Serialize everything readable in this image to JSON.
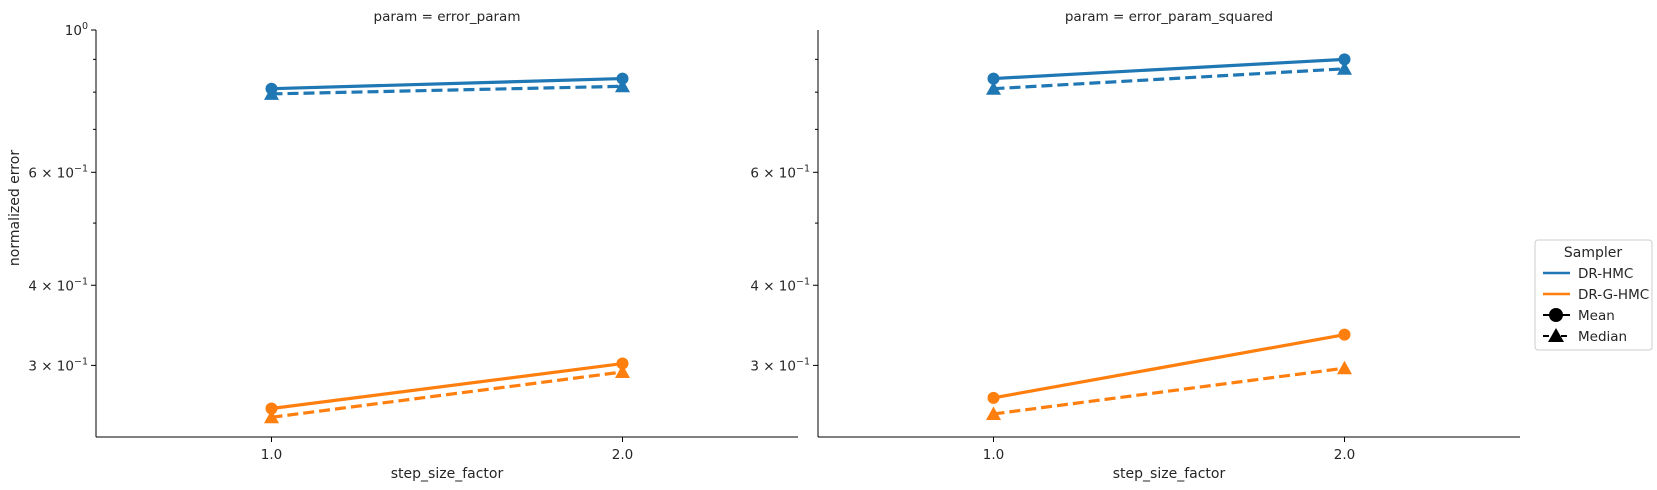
{
  "figure": {
    "ylabel": "normalized error",
    "legend": {
      "title": "Sampler",
      "placement": "right",
      "entries": [
        {
          "label": "DR-HMC",
          "kind": "series",
          "color": "#1f77b4"
        },
        {
          "label": "DR-G-HMC",
          "kind": "series",
          "color": "#ff7f0e"
        },
        {
          "label": "Mean",
          "kind": "style",
          "marker": "circle",
          "dash": "solid"
        },
        {
          "label": "Median",
          "kind": "style",
          "marker": "triangle",
          "dash": "dashed"
        }
      ]
    }
  },
  "chart_data": [
    {
      "type": "line",
      "title": "param = error_param",
      "xlabel": "step_size_factor",
      "ylabel": "normalized error",
      "yscale": "log",
      "categories": [
        "1.0",
        "2.0"
      ],
      "ylim": [
        0.232,
        1.0
      ],
      "yticks": [
        {
          "value": 1.0,
          "label": "10",
          "exp": "0"
        },
        {
          "value": 0.6,
          "label": "6 × 10",
          "exp": "−1"
        },
        {
          "value": 0.4,
          "label": "4 × 10",
          "exp": "−1"
        },
        {
          "value": 0.3,
          "label": "3 × 10",
          "exp": "−1"
        }
      ],
      "minor_yticks": [
        0.9,
        0.8,
        0.7,
        0.5
      ],
      "series": [
        {
          "sampler": "DR-HMC",
          "stat": "Mean",
          "values": [
            0.81,
            0.84
          ]
        },
        {
          "sampler": "DR-HMC",
          "stat": "Median",
          "values": [
            0.795,
            0.817
          ]
        },
        {
          "sampler": "DR-G-HMC",
          "stat": "Mean",
          "values": [
            0.257,
            0.302
          ]
        },
        {
          "sampler": "DR-G-HMC",
          "stat": "Median",
          "values": [
            0.249,
            0.293
          ]
        }
      ]
    },
    {
      "type": "line",
      "title": "param = error_param_squared",
      "xlabel": "step_size_factor",
      "yscale": "log",
      "categories": [
        "1.0",
        "2.0"
      ],
      "ylim": [
        0.232,
        1.0
      ],
      "yticks": [
        {
          "value": 0.6,
          "label": "6 × 10",
          "exp": "−1"
        },
        {
          "value": 0.4,
          "label": "4 × 10",
          "exp": "−1"
        },
        {
          "value": 0.3,
          "label": "3 × 10",
          "exp": "−1"
        }
      ],
      "minor_yticks": [
        0.9,
        0.8,
        0.7,
        0.5
      ],
      "series": [
        {
          "sampler": "DR-HMC",
          "stat": "Mean",
          "values": [
            0.84,
            0.9
          ]
        },
        {
          "sampler": "DR-HMC",
          "stat": "Median",
          "values": [
            0.81,
            0.87
          ]
        },
        {
          "sampler": "DR-G-HMC",
          "stat": "Mean",
          "values": [
            0.267,
            0.335
          ]
        },
        {
          "sampler": "DR-G-HMC",
          "stat": "Median",
          "values": [
            0.252,
            0.297
          ]
        }
      ]
    }
  ]
}
